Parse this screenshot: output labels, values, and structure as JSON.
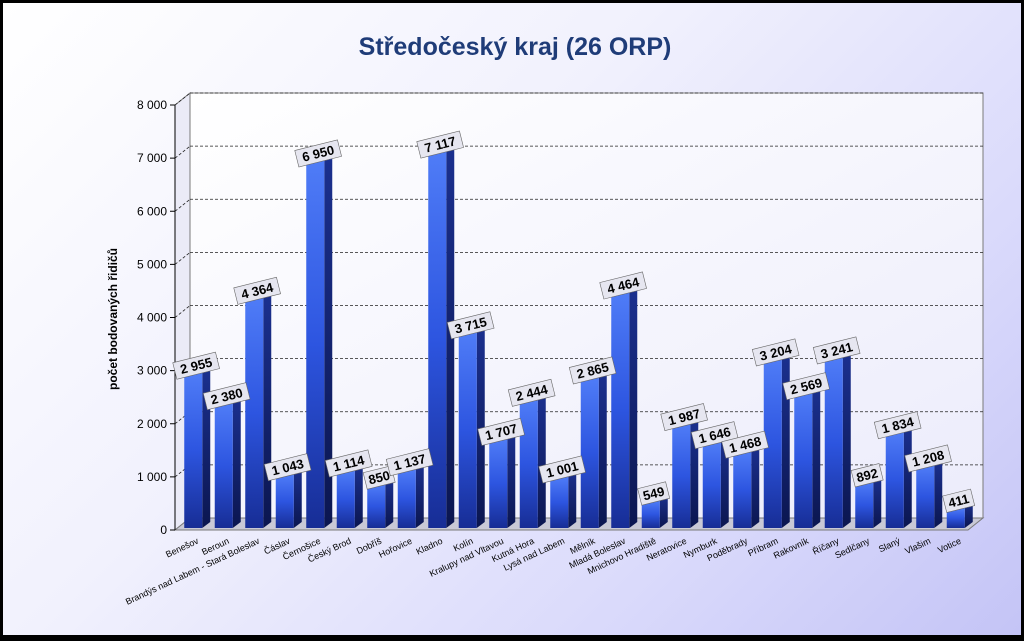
{
  "chart_data": {
    "type": "bar",
    "title": "Středočeský kraj (26 ORP)",
    "xlabel": "",
    "ylabel": "počet bodovaných řidičů",
    "ylim": [
      0,
      8000
    ],
    "yticks": [
      "0",
      "1 000",
      "2 000",
      "3 000",
      "4 000",
      "5 000",
      "6 000",
      "7 000",
      "8 000"
    ],
    "grid": true,
    "legend": "none",
    "bar_color": "#2d55e0",
    "categories": [
      "Benešov",
      "Beroun",
      "Brandýs nad Labem - Stará Boleslav",
      "Čáslav",
      "Černošice",
      "Český Brod",
      "Dobříš",
      "Hořovice",
      "Kladno",
      "Kolín",
      "Kralupy nad Vltavou",
      "Kutná Hora",
      "Lysá nad Labem",
      "Mělník",
      "Mladá Boleslav",
      "Mnichovo Hradiště",
      "Neratovice",
      "Nymburk",
      "Poděbrady",
      "Příbram",
      "Rakovník",
      "Říčany",
      "Sedlčany",
      "Slaný",
      "Vlašim",
      "Votice"
    ],
    "values": [
      2955,
      2380,
      4364,
      1043,
      6950,
      1114,
      850,
      1137,
      7117,
      3715,
      1707,
      2444,
      1001,
      2865,
      4464,
      549,
      1987,
      1646,
      1468,
      3204,
      2569,
      3241,
      892,
      1834,
      1208,
      411
    ],
    "value_labels": [
      "2 955",
      "2 380",
      "4 364",
      "1 043",
      "6 950",
      "1 114",
      "850",
      "1 137",
      "7 117",
      "3 715",
      "1 707",
      "2 444",
      "1 001",
      "2 865",
      "4 464",
      "549",
      "1 987",
      "1 646",
      "1 468",
      "3 204",
      "2 569",
      "3 241",
      "892",
      "1 834",
      "1 208",
      "411"
    ]
  }
}
